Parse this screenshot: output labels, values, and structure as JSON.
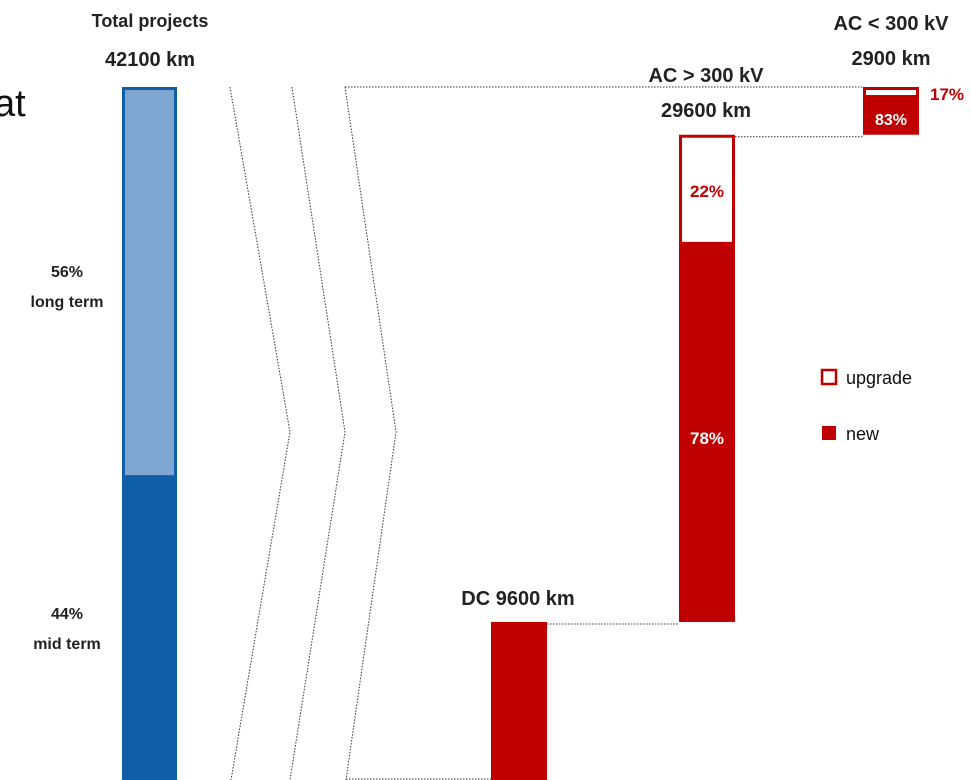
{
  "heading_fragment": "at",
  "chart_data": {
    "type": "bar",
    "title": "",
    "colors": {
      "long_term": "#7ea6d0",
      "mid_term": "#0e5ea8",
      "new": "#c00000",
      "upgrade": "#ffffff"
    },
    "bars": [
      {
        "id": "total",
        "label_line1": "Total projects",
        "label_line2": "42100 km",
        "total_km": 42100,
        "segments": [
          {
            "name": "long term",
            "share": 56,
            "pct_label": "56%",
            "text": "long term"
          },
          {
            "name": "mid term",
            "share": 44,
            "pct_label": "44%",
            "text": "mid term"
          }
        ]
      },
      {
        "id": "dc",
        "label_line1": "DC 9600 km",
        "total_km": 9600,
        "segments": [
          {
            "name": "new",
            "share": 100
          }
        ]
      },
      {
        "id": "ac_high",
        "label_line1": "AC > 300 kV",
        "label_line2": "29600 km",
        "total_km": 29600,
        "segments": [
          {
            "name": "upgrade",
            "share": 22,
            "pct_label": "22%"
          },
          {
            "name": "new",
            "share": 78,
            "pct_label": "78%"
          }
        ]
      },
      {
        "id": "ac_low",
        "label_line1": "AC < 300 kV",
        "label_line2": "2900 km",
        "total_km": 2900,
        "segments": [
          {
            "name": "upgrade",
            "share": 17,
            "pct_label": "17%"
          },
          {
            "name": "new",
            "share": 83,
            "pct_label": "83%"
          }
        ]
      }
    ],
    "legend": [
      {
        "key": "upgrade",
        "label": "upgrade"
      },
      {
        "key": "new",
        "label": "new"
      }
    ],
    "legend_position": "right"
  }
}
